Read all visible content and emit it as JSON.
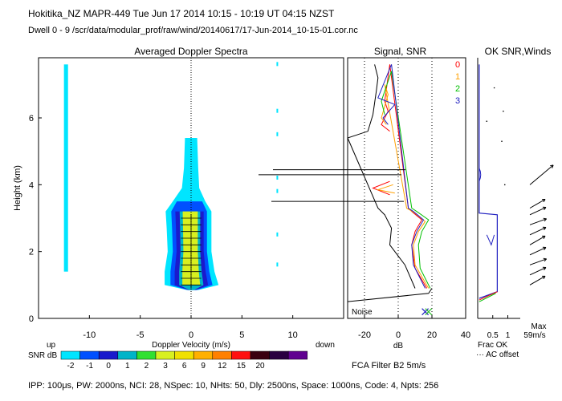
{
  "header": {
    "line1": "Hokitika_NZ   MAPR-449   Tue Jun 17 2014 10:15  -  10:19 UT 04:15 NZST",
    "line2": "Dwell   0  -   9    /scr/data/modular_prof/raw/wind/20140617/17-Jun-2014_10-15-01.cor.nc"
  },
  "footer": {
    "params": "IPP: 100μs,  PW: 2000ns,  NCI:  28,  NSpec: 10,  NHts: 50,  Dly: 2500ns,  Space: 1000ns,  Code: 4,  Npts: 256",
    "fca_filter": "FCA Filter B2   5m/s"
  },
  "colors": {
    "snr_scale": [
      "#00e5ff",
      "#0050ff",
      "#1a1acc",
      "#00b4c8",
      "#30e030",
      "#d8f020",
      "#f0e000",
      "#ffb000",
      "#ff8000",
      "#ff1010",
      "#3a0010",
      "#2a0040",
      "#600090"
    ]
  },
  "chart_data": [
    {
      "type": "heatmap",
      "id": "doppler-spectra",
      "title": "Averaged Doppler Spectra",
      "xlabel": "Doppler Velocity (m/s)",
      "ylabel": "Height (km)",
      "xlim": [
        -15,
        15
      ],
      "ylim": [
        0,
        7.8
      ],
      "xticks": [
        -10,
        -5,
        0,
        5,
        10
      ],
      "yticks": [
        0,
        2,
        4,
        6
      ],
      "x_left_label": "up",
      "x_right_label": "down",
      "colorbar": {
        "label": "SNR dB",
        "ticks": [
          "-2",
          "-1",
          "0",
          "1",
          "2",
          "3",
          "6",
          "9",
          "12",
          "15",
          "20"
        ]
      },
      "echo_profile": [
        {
          "h": 0.85,
          "lo": -0.4,
          "hi": 0.7
        },
        {
          "h": 1.0,
          "lo": -2.6,
          "hi": 2.7
        },
        {
          "h": 1.4,
          "lo": -2.6,
          "hi": 2.3
        },
        {
          "h": 2.0,
          "lo": -2.3,
          "hi": 2.0
        },
        {
          "h": 2.7,
          "lo": -2.4,
          "hi": 2.0
        },
        {
          "h": 3.2,
          "lo": -2.5,
          "hi": 2.0
        },
        {
          "h": 3.5,
          "lo": -1.8,
          "hi": 1.4
        },
        {
          "h": 3.9,
          "lo": -0.9,
          "hi": 0.8
        },
        {
          "h": 4.5,
          "lo": -0.7,
          "hi": 0.7
        },
        {
          "h": 5.4,
          "lo": -0.6,
          "hi": 0.6
        }
      ],
      "ground_clutter_band_ms": [
        -12.5,
        -12.1
      ],
      "ground_clutter_top_km": 7.6
    },
    {
      "type": "line",
      "id": "signal-snr",
      "title": "Signal, SNR",
      "xlabel": "dB",
      "xlim": [
        -30,
        40
      ],
      "xticks": [
        -20,
        0,
        20,
        40
      ],
      "dotted_x": [
        -20,
        0,
        20
      ],
      "noise_label": "Noise",
      "series": [
        {
          "name": "0",
          "color": "#ff0000",
          "points": [
            [
              17,
              0.9
            ],
            [
              10,
              1.5
            ],
            [
              8,
              2.2
            ],
            [
              10,
              2.6
            ],
            [
              14,
              2.95
            ],
            [
              8,
              3.2
            ],
            [
              6,
              3.3
            ],
            [
              -5,
              7.6
            ],
            [
              -8,
              6.5
            ],
            [
              -6,
              6.2
            ],
            [
              -10,
              5.8
            ],
            [
              -5,
              5.6
            ]
          ]
        },
        {
          "name": "1",
          "color": "#ffa000",
          "points": [
            [
              18,
              0.9
            ],
            [
              10,
              1.6
            ],
            [
              9,
              2.2
            ],
            [
              12,
              2.6
            ],
            [
              16,
              2.9
            ],
            [
              10,
              3.15
            ],
            [
              5,
              3.3
            ],
            [
              -8,
              7.0
            ],
            [
              -6,
              6.7
            ],
            [
              -10,
              6.0
            ],
            [
              -7,
              5.8
            ]
          ]
        },
        {
          "name": "2",
          "color": "#00c000",
          "points": [
            [
              19,
              0.9
            ],
            [
              13,
              1.5
            ],
            [
              12,
              2.2
            ],
            [
              14,
              2.6
            ],
            [
              18,
              2.95
            ],
            [
              11,
              3.2
            ],
            [
              8,
              3.3
            ],
            [
              -4,
              7.4
            ],
            [
              -10,
              6.5
            ],
            [
              -8,
              6.1
            ]
          ]
        },
        {
          "name": "3",
          "color": "#2020c0",
          "points": [
            [
              16,
              0.9
            ],
            [
              9,
              1.6
            ],
            [
              8,
              2.2
            ],
            [
              11,
              2.6
            ],
            [
              15,
              2.95
            ],
            [
              9,
              3.2
            ],
            [
              6,
              3.3
            ],
            [
              -4,
              7.6
            ],
            [
              -12,
              6.6
            ],
            [
              -2,
              6.4
            ],
            [
              -9,
              6.0
            ],
            [
              -6,
              5.8
            ]
          ]
        },
        {
          "name": "signal",
          "color": "#000000",
          "points": [
            [
              10,
              0.9
            ],
            [
              4,
              1.6
            ],
            [
              -5,
              2.2
            ],
            [
              -4,
              2.7
            ],
            [
              -8,
              3.1
            ],
            [
              -12,
              3.3
            ],
            [
              -30,
              5.4
            ],
            [
              -18,
              5.6
            ],
            [
              -15,
              6.1
            ],
            [
              -13,
              6.8
            ],
            [
              -12,
              7.2
            ],
            [
              -14,
              7.6
            ]
          ]
        },
        {
          "name": "noise",
          "color": "#000000",
          "points": [
            [
              -30,
              0.5
            ],
            [
              18,
              0.75
            ],
            [
              20,
              0.9
            ]
          ]
        }
      ]
    },
    {
      "type": "line",
      "id": "ok-snr-winds",
      "title": "OK SNR,Winds",
      "xlabel": "Frac OK",
      "xlim": [
        0,
        1.2
      ],
      "xticks": [
        "0.5",
        "1"
      ],
      "ok_fraction": [
        {
          "h": 0.6,
          "v": 0.05
        },
        {
          "h": 0.8,
          "v": 0.65
        },
        {
          "h": 3.1,
          "v": 0.65
        },
        {
          "h": 3.15,
          "v": 0.05
        },
        {
          "h": 7.6,
          "v": 0.05
        }
      ],
      "legend_labels": [
        "0",
        "1",
        "2",
        "3"
      ],
      "ac_offset_label": "··· AC offset",
      "max_label": "Max",
      "max_value": "59m/s",
      "wind_barbs": [
        {
          "h": 1.0,
          "dir": -30
        },
        {
          "h": 1.3,
          "dir": -25
        },
        {
          "h": 1.6,
          "dir": -20
        },
        {
          "h": 1.9,
          "dir": -25
        },
        {
          "h": 2.2,
          "dir": -30
        },
        {
          "h": 2.5,
          "dir": -25
        },
        {
          "h": 2.8,
          "dir": -20
        },
        {
          "h": 3.1,
          "dir": -25
        },
        {
          "h": 3.3,
          "dir": -30
        },
        {
          "h": 4.0,
          "dir": -40
        }
      ]
    }
  ]
}
